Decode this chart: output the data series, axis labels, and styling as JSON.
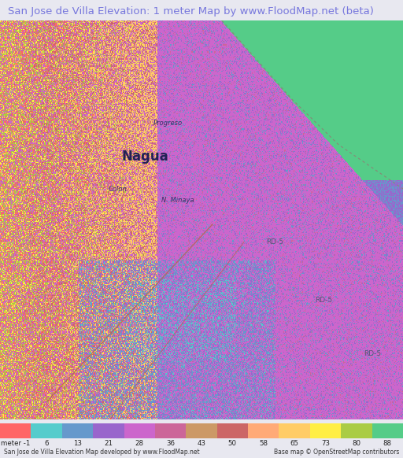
{
  "title": "San Jose de Villa Elevation: 1 meter Map by www.FloodMap.net (beta)",
  "title_color": "#7777dd",
  "title_fontsize": 9.5,
  "colorbar_labels": [
    "meter -1",
    "6",
    "13",
    "21",
    "28",
    "36",
    "43",
    "50",
    "58",
    "65",
    "73",
    "80",
    "88"
  ],
  "colorbar_values": [
    -1,
    6,
    13,
    21,
    28,
    36,
    43,
    50,
    58,
    65,
    73,
    80,
    88
  ],
  "colorbar_colors": [
    "#ff6666",
    "#55cccc",
    "#6699cc",
    "#9966cc",
    "#cc66cc",
    "#cc6699",
    "#cc9966",
    "#cc6666",
    "#ffaa77",
    "#ffcc66",
    "#ffee44",
    "#aacc44",
    "#55cc88"
  ],
  "bottom_left_text": "San Jose de Villa Elevation Map developed by www.FloodMap.net",
  "bottom_right_text": "Base map © OpenStreetMap contributors",
  "background_color": "#e8e8f0",
  "fig_width": 5.12,
  "fig_height": 5.82
}
